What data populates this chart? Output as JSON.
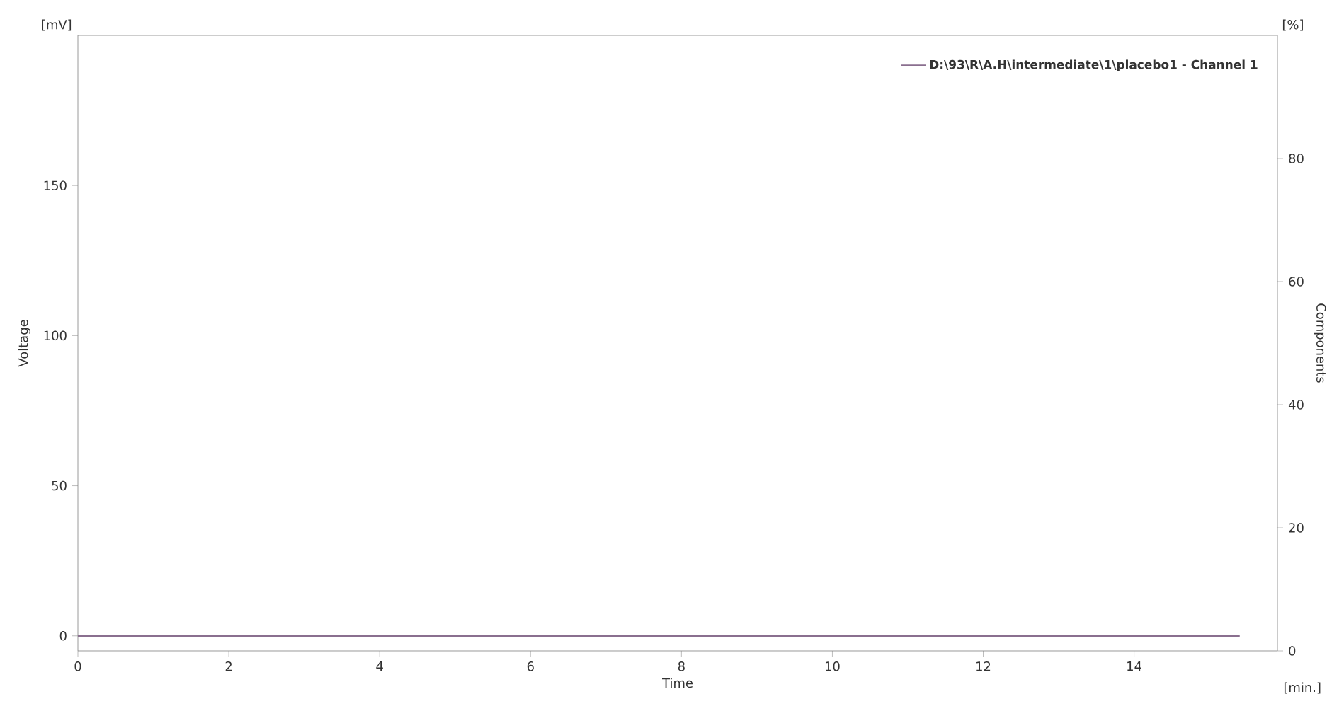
{
  "chart_data": {
    "type": "line",
    "xlabel": "Time",
    "ylabel": "Voltage",
    "y2label": "Components",
    "x": [
      0,
      15.4
    ],
    "series": [
      {
        "name": "D:\\93\\R\\A.H\\intermediate\\1\\placebo1 -  Channel 1",
        "color": "#8a6f8f",
        "values": [
          0,
          0
        ]
      }
    ],
    "xlim": [
      0,
      15.9
    ],
    "xticks": [
      0,
      2,
      4,
      6,
      8,
      10,
      12,
      14
    ],
    "ylim": [
      -5,
      200
    ],
    "yticks": [
      0,
      50,
      100,
      150
    ],
    "y2lim": [
      0,
      100
    ],
    "y2ticks": [
      0,
      20,
      40,
      60,
      80
    ],
    "annotations": [
      "[mV]",
      "[%]",
      "[min.]"
    ],
    "legend": "top right",
    "grid": false,
    "marker": "none",
    "line_style": "solid"
  }
}
